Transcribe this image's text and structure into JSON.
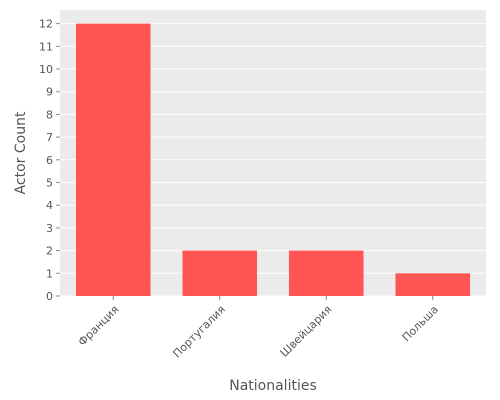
{
  "chart_data": {
    "type": "bar",
    "title": "",
    "xlabel": "Nationalities",
    "ylabel": "Actor Count",
    "categories": [
      "Франция",
      "Португалия",
      "Швейцария",
      "Польша"
    ],
    "values": [
      12,
      2,
      2,
      1
    ],
    "ylim": [
      0,
      12.6
    ],
    "yticks": [
      0,
      1,
      2,
      3,
      4,
      5,
      6,
      7,
      8,
      9,
      10,
      11,
      12
    ],
    "grid": true,
    "legend": "none",
    "colors": {
      "bar": "#FF5555",
      "plot_background": "#EBEBEB",
      "grid": "#FFFFFF",
      "text": "#555555"
    }
  }
}
